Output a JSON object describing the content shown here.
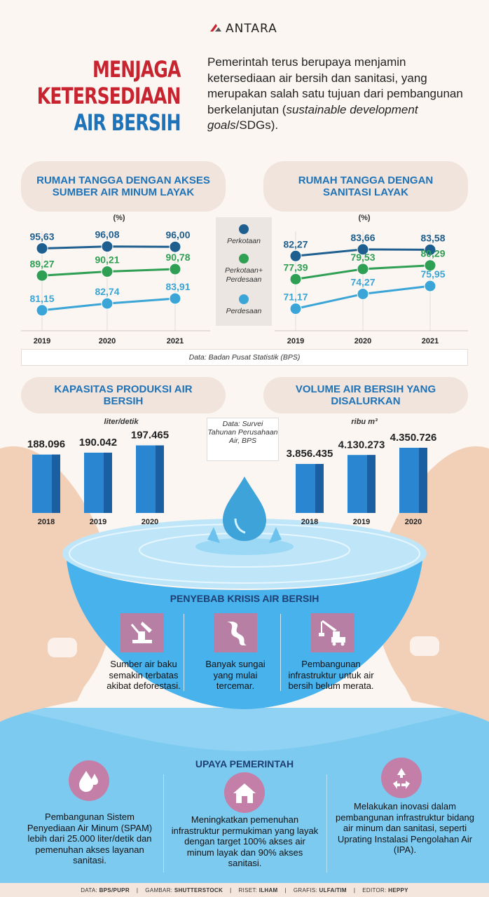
{
  "brand": {
    "name": "ANTARA",
    "color": "#c8242f"
  },
  "title": {
    "line1": "MENJAGA",
    "line2": "KETERSEDIAAN",
    "line3": "AIR BERSIH"
  },
  "intro": {
    "text_a": "Pemerintah terus berupaya menjamin ketersediaan air bersih dan sanitasi, yang merupakan salah satu tujuan dari pembangunan berkelanjutan (",
    "text_em": "sustainable development goals",
    "text_b": "/SDGs)."
  },
  "colors": {
    "perkotaan": "#1e5f8f",
    "campuran": "#2e9f53",
    "perdesaan": "#3aa5d6",
    "accent": "#1e73b8",
    "bar": "#2a86d0",
    "icon": "#b77fa4"
  },
  "legend": {
    "perkotaan": "Perkotaan",
    "campuran": "Perkotaan+ Perdesaan",
    "perdesaan": "Perdesaan"
  },
  "source1": "Data: Badan Pusat Statistik (BPS)",
  "source2": "Data: Survei Tahunan Perusahaan Air, BPS",
  "chart_data": [
    {
      "type": "line",
      "title": "RUMAH TANGGA DENGAN AKSES SUMBER AIR MINUM LAYAK",
      "unit": "(%)",
      "x": [
        "2019",
        "2020",
        "2021"
      ],
      "series": [
        {
          "name": "Perkotaan",
          "values": [
            95.63,
            96.08,
            96.0
          ],
          "labels": [
            "95,63",
            "96,08",
            "96,00"
          ]
        },
        {
          "name": "Perkotaan+ Perdesaan",
          "values": [
            89.27,
            90.21,
            90.78
          ],
          "labels": [
            "89,27",
            "90,21",
            "90,78"
          ]
        },
        {
          "name": "Perdesaan",
          "values": [
            81.15,
            82.74,
            83.91
          ],
          "labels": [
            "81,15",
            "82,74",
            "83,91"
          ]
        }
      ]
    },
    {
      "type": "line",
      "title": "RUMAH TANGGA DENGAN SANITASI LAYAK",
      "unit": "(%)",
      "x": [
        "2019",
        "2020",
        "2021"
      ],
      "series": [
        {
          "name": "Perkotaan",
          "values": [
            82.27,
            83.66,
            83.58
          ],
          "labels": [
            "82,27",
            "83,66",
            "83,58"
          ]
        },
        {
          "name": "Perkotaan+ Perdesaan",
          "values": [
            77.39,
            79.53,
            80.29
          ],
          "labels": [
            "77,39",
            "79,53",
            "80,29"
          ]
        },
        {
          "name": "Perdesaan",
          "values": [
            71.17,
            74.27,
            75.95
          ],
          "labels": [
            "71,17",
            "74,27",
            "75,95"
          ]
        }
      ]
    },
    {
      "type": "bar",
      "title": "KAPASITAS PRODUKSI AIR BERSIH",
      "unit": "liter/detik",
      "categories": [
        "2018",
        "2019",
        "2020"
      ],
      "values": [
        188096,
        190042,
        197465
      ],
      "labels": [
        "188.096",
        "190.042",
        "197.465"
      ]
    },
    {
      "type": "bar",
      "title": "VOLUME AIR BERSIH YANG DISALURKAN",
      "unit": "ribu m³",
      "categories": [
        "2018",
        "2019",
        "2020"
      ],
      "values": [
        3856435,
        4130273,
        4350726
      ],
      "labels": [
        "3.856.435",
        "4.130.273",
        "4.350.726"
      ]
    }
  ],
  "causes": {
    "title": "PENYEBAB KRISIS AIR BERSIH",
    "items": [
      {
        "icon": "axe-tree-icon",
        "text": "Sumber air baku semakin terbatas akibat deforestasi."
      },
      {
        "icon": "river-icon",
        "text": "Banyak sungai yang mulai tercemar."
      },
      {
        "icon": "crane-icon",
        "text": "Pembangunan infrastruktur untuk air bersih belum merata."
      }
    ]
  },
  "efforts": {
    "title": "UPAYA PEMERINTAH",
    "items": [
      {
        "icon": "water-drops-icon",
        "text": "Pembangunan Sistem Penyediaan Air Minum (SPAM) lebih dari 25.000 liter/detik dan pemenuhan akses layanan sanitasi."
      },
      {
        "icon": "house-icon",
        "text": "Meningkatkan pemenuhan infrastruktur permukiman yang layak dengan target 100% akses air minum layak dan 90% akses sanitasi."
      },
      {
        "icon": "recycle-icon",
        "text": "Melakukan inovasi dalam pembangunan infrastruktur bidang air minum dan sanitasi, seperti Uprating Instalasi Pengolahan Air (IPA)."
      }
    ]
  },
  "footer": {
    "data_k": "DATA:",
    "data_v": "BPS/PUPR",
    "gambar_k": "GAMBAR:",
    "gambar_v": "SHUTTERSTOCK",
    "riset_k": "RISET:",
    "riset_v": "ILHAM",
    "grafis_k": "GRAFIS:",
    "grafis_v": "ULFA/TIM",
    "editor_k": "EDITOR:",
    "editor_v": "HEPPY"
  }
}
